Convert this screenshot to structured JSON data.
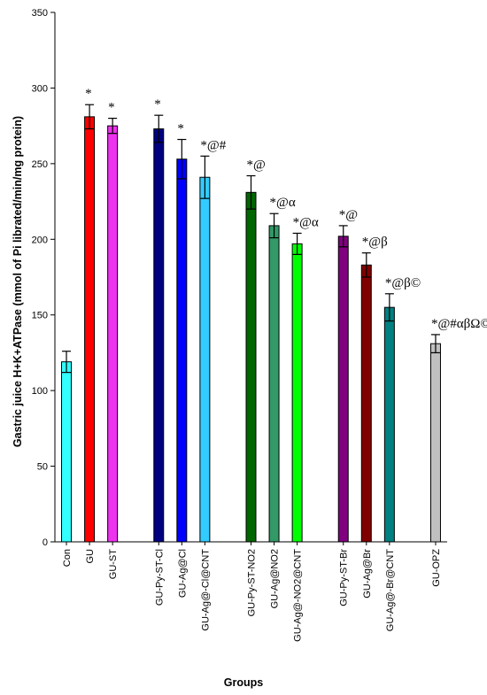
{
  "chart_data": {
    "type": "bar",
    "title": "",
    "xlabel": "Groups",
    "ylabel": "Gastric juice H+K+ATPase (mmol of Pi librated/min/mg protein)",
    "ylim": [
      0,
      350
    ],
    "yticks": [
      0,
      50,
      100,
      150,
      200,
      250,
      300,
      350
    ],
    "grid": false,
    "legend": "none",
    "bars": [
      {
        "category": "Con",
        "value": 119,
        "error": 7,
        "color": "#33FFFF",
        "annotation": "",
        "group": 0
      },
      {
        "category": "GU",
        "value": 281,
        "error": 8,
        "color": "#FF0000",
        "annotation": "*",
        "group": 0
      },
      {
        "category": "GU-ST",
        "value": 275,
        "error": 5,
        "color": "#EE33EE",
        "annotation": "*",
        "group": 0
      },
      {
        "category": "GU-Py-ST-Cl",
        "value": 273,
        "error": 9,
        "color": "#000080",
        "annotation": "*",
        "group": 1
      },
      {
        "category": "GU-Ag@Cl",
        "value": 253,
        "error": 13,
        "color": "#0000FF",
        "annotation": "*",
        "group": 1
      },
      {
        "category": "GU-Ag@-Cl@CNT",
        "value": 241,
        "error": 14,
        "color": "#33CCFF",
        "annotation": "*@#",
        "group": 1
      },
      {
        "category": "GU-Py-ST-NO2",
        "value": 231,
        "error": 11,
        "color": "#006600",
        "annotation": "*@",
        "group": 2
      },
      {
        "category": "GU-Ag@NO2",
        "value": 209,
        "error": 8,
        "color": "#339966",
        "annotation": "*@α",
        "group": 2
      },
      {
        "category": "GU-Ag@-NO2@CNT",
        "value": 197,
        "error": 7,
        "color": "#00FF00",
        "annotation": "*@α",
        "group": 2
      },
      {
        "category": "GU-Py-ST-Br",
        "value": 202,
        "error": 7,
        "color": "#800080",
        "annotation": "*@",
        "group": 3
      },
      {
        "category": "GU-Ag@Br",
        "value": 183,
        "error": 8,
        "color": "#800000",
        "annotation": "*@β",
        "group": 3
      },
      {
        "category": "GU-Ag@-Br@CNT",
        "value": 155,
        "error": 9,
        "color": "#008080",
        "annotation": "*@β©",
        "group": 3
      },
      {
        "category": "GU-OPZ",
        "value": 131,
        "error": 6,
        "color": "#C0C0C0",
        "annotation": "*@#αβΩ©",
        "group": 4
      }
    ]
  }
}
